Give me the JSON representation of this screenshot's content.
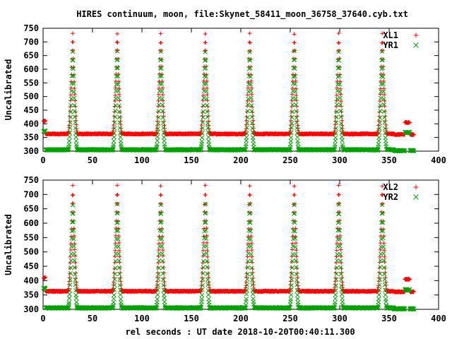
{
  "chart_data": {
    "title": "HIRES continuum, moon, file:Skynet_58411_moon_36758_37640.cyb.txt",
    "xlabel": "rel seconds : UT date 2018-10-20T00:40:11.300",
    "colors": {
      "XL": "#ff0000",
      "YR": "#00a000"
    },
    "panels": [
      {
        "type": "scatter",
        "ylabel": "Uncalibrated",
        "xlim": [
          0,
          400
        ],
        "ylim": [
          300,
          750
        ],
        "xticks": [
          0,
          50,
          100,
          150,
          200,
          250,
          300,
          350,
          400
        ],
        "yticks": [
          300,
          350,
          400,
          450,
          500,
          550,
          600,
          650,
          700,
          750
        ],
        "grid": false,
        "legend_position": "top-right",
        "series": [
          {
            "name": "XL1",
            "marker": "plus",
            "color": "#ff0000",
            "baseline": 363,
            "start_level": 410,
            "end_level": 405,
            "end_baseline": 361,
            "peak_centers": [
              30,
              75,
              119,
              164,
              209,
              254,
              299,
              343
            ],
            "peak_values": [
              730,
              730,
              730,
              730,
              730,
              730,
              730,
              730
            ],
            "peak_half_width_s": 4.5
          },
          {
            "name": "YR1",
            "marker": "cross",
            "color": "#00a000",
            "baseline": 305,
            "start_level": 373,
            "end_level": 368,
            "end_baseline": 302,
            "peak_centers": [
              30,
              75,
              119,
              164,
              209,
              254,
              299,
              343
            ],
            "peak_values": [
              665,
              665,
              665,
              665,
              665,
              665,
              665,
              665
            ],
            "peak_half_width_s": 4.5
          }
        ]
      },
      {
        "type": "scatter",
        "ylabel": "Uncalibrated",
        "xlim": [
          0,
          400
        ],
        "ylim": [
          300,
          750
        ],
        "xticks": [
          0,
          50,
          100,
          150,
          200,
          250,
          300,
          350,
          400
        ],
        "yticks": [
          300,
          350,
          400,
          450,
          500,
          550,
          600,
          650,
          700,
          750
        ],
        "grid": false,
        "legend_position": "top-right",
        "series": [
          {
            "name": "XL2",
            "marker": "plus",
            "color": "#ff0000",
            "baseline": 363,
            "start_level": 410,
            "end_level": 405,
            "end_baseline": 361,
            "peak_centers": [
              30,
              75,
              119,
              164,
              209,
              254,
              299,
              343
            ],
            "peak_values": [
              730,
              730,
              730,
              730,
              730,
              730,
              730,
              730
            ],
            "peak_half_width_s": 4.5
          },
          {
            "name": "YR2",
            "marker": "cross",
            "color": "#00a000",
            "baseline": 305,
            "start_level": 373,
            "end_level": 368,
            "end_baseline": 302,
            "peak_centers": [
              30,
              75,
              119,
              164,
              209,
              254,
              299,
              343
            ],
            "peak_values": [
              665,
              665,
              665,
              665,
              665,
              665,
              665,
              665
            ],
            "peak_half_width_s": 4.5
          }
        ]
      }
    ]
  }
}
